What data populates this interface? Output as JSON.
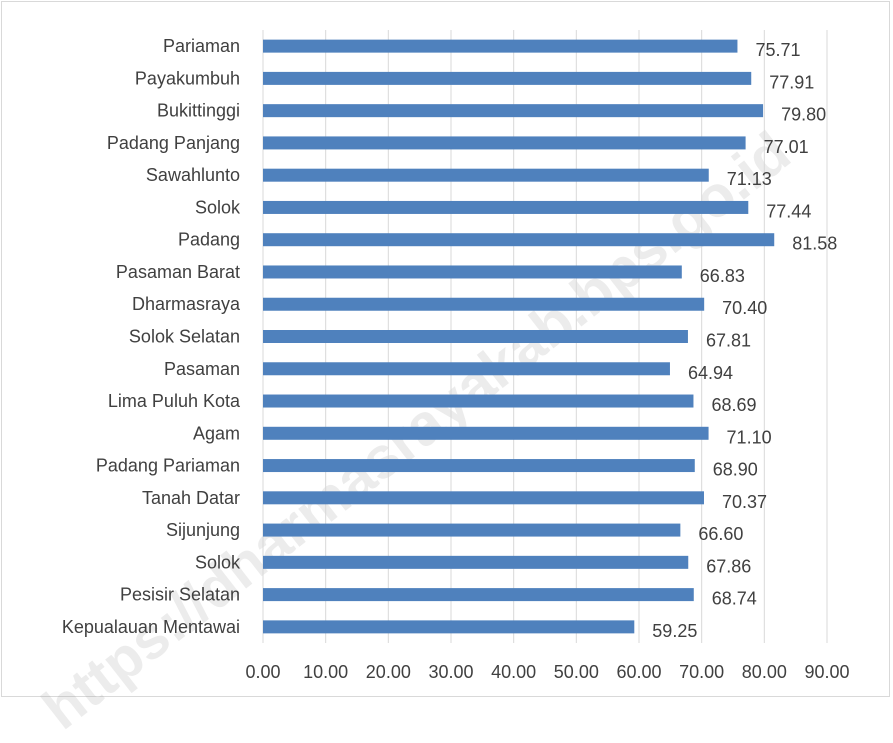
{
  "watermark": "https://dharmasrayakab.bps.go.id",
  "colors": {
    "bar": "#4f81bd",
    "grid": "#d9d9d9",
    "text": "#404040"
  },
  "chart_data": {
    "type": "bar",
    "orientation": "horizontal",
    "categories": [
      "Pariaman",
      "Payakumbuh",
      "Bukittinggi",
      "Padang Panjang",
      "Sawahlunto",
      "Solok",
      "Padang",
      "Pasaman Barat",
      "Dharmasraya",
      "Solok Selatan",
      "Pasaman",
      "Lima Puluh Kota",
      "Agam",
      "Padang Pariaman",
      "Tanah Datar",
      "Sijunjung",
      "Solok",
      "Pesisir Selatan",
      "Kepualauan Mentawai"
    ],
    "values": [
      75.71,
      77.91,
      79.8,
      77.01,
      71.13,
      77.44,
      81.58,
      66.83,
      70.4,
      67.81,
      64.94,
      68.69,
      71.1,
      68.9,
      70.37,
      66.6,
      67.86,
      68.74,
      59.25
    ],
    "value_labels": [
      "75.71",
      "77.91",
      "79.80",
      "77.01",
      "71.13",
      "77.44",
      "81.58",
      "66.83",
      "70.40",
      "67.81",
      "64.94",
      "68.69",
      "71.10",
      "68.90",
      "70.37",
      "66.60",
      "67.86",
      "68.74",
      "59.25"
    ],
    "xlim": [
      0,
      90
    ],
    "x_ticks": [
      "0.00",
      "10.00",
      "20.00",
      "30.00",
      "40.00",
      "50.00",
      "60.00",
      "70.00",
      "80.00",
      "90.00"
    ],
    "grid": true,
    "title": "",
    "xlabel": "",
    "ylabel": ""
  }
}
